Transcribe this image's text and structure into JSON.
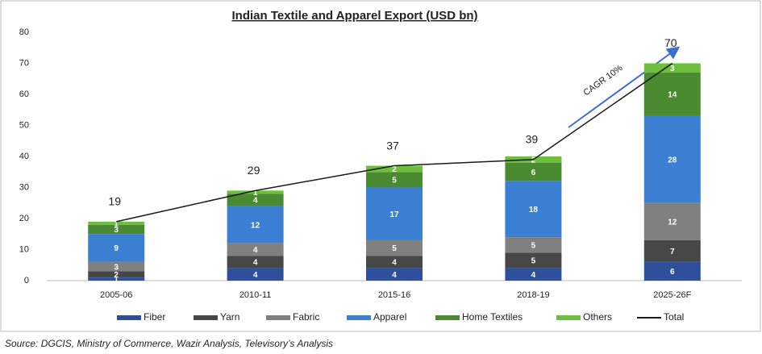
{
  "chart_data": {
    "type": "stacked_bar_line",
    "title": "Indian Textile and Apparel Export (USD bn)",
    "categories": [
      "2005-06",
      "2010-11",
      "2015-16",
      "2018-19",
      "2025-26F"
    ],
    "series": [
      {
        "name": "Fiber",
        "color": "#2e4f9c",
        "values": [
          1,
          4,
          4,
          4,
          6
        ]
      },
      {
        "name": "Yarn",
        "color": "#474747",
        "values": [
          2,
          4,
          4,
          5,
          7
        ]
      },
      {
        "name": "Fabric",
        "color": "#808080",
        "values": [
          3,
          4,
          5,
          5,
          12
        ]
      },
      {
        "name": "Apparel",
        "color": "#3a7fd2",
        "values": [
          9,
          12,
          17,
          18,
          28
        ]
      },
      {
        "name": "Home Textiles",
        "color": "#4a8a30",
        "values": [
          3,
          4,
          5,
          6,
          14
        ]
      },
      {
        "name": "Others",
        "color": "#6dbf3c",
        "values": [
          1,
          1,
          2,
          2,
          3
        ]
      }
    ],
    "total": {
      "name": "Total",
      "color": "#1a1a1a",
      "values": [
        19,
        29,
        37,
        39,
        70
      ]
    },
    "ylim": [
      0,
      80
    ],
    "yticks": [
      0,
      10,
      20,
      30,
      40,
      50,
      60,
      70,
      80
    ],
    "grid": false,
    "annotation": "CAGR 10%",
    "source": "Source: DGCIS, Ministry of Commerce, Wazir Analysis, Televisory’s Analysis"
  }
}
